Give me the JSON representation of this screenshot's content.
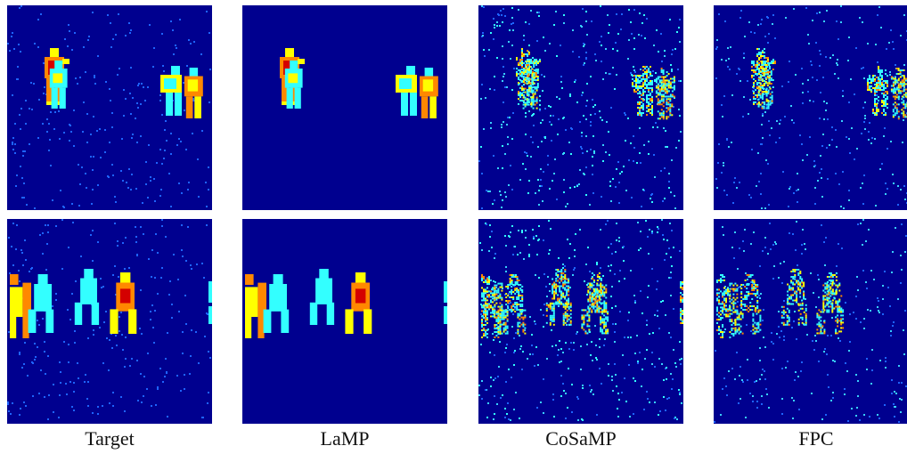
{
  "figure": {
    "columns": [
      {
        "id": "target",
        "label": "Target"
      },
      {
        "id": "lamp",
        "label": "LaMP"
      },
      {
        "id": "cosamp",
        "label": "CoSaMP"
      },
      {
        "id": "fpc",
        "label": "FPC"
      }
    ],
    "colors": {
      "background": "#00008f",
      "noise_light": "#1e64ff",
      "noise_cyan": "#39d0ff",
      "cyan": "#33ffff",
      "yellow": "#ffff00",
      "orange": "#ff8800",
      "red": "#d40000"
    }
  }
}
